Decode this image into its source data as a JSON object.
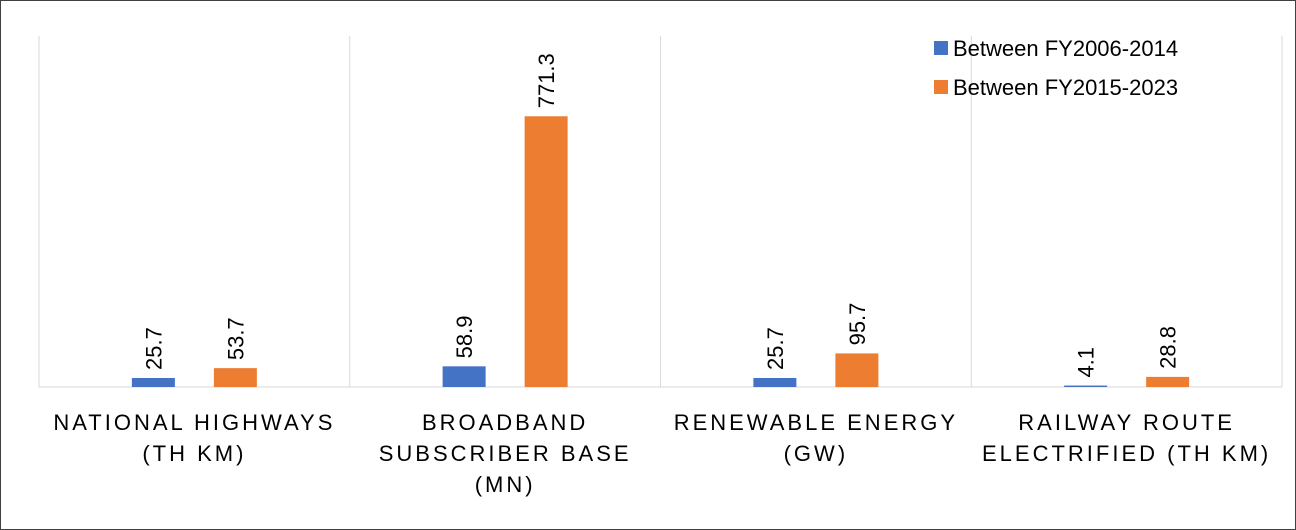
{
  "chart_data": {
    "type": "bar",
    "categories": [
      "NATIONAL HIGHWAYS (TH KM)",
      "BROADBAND SUBSCRIBER BASE (MN)",
      "RENEWABLE ENERGY (GW)",
      "RAILWAY ROUTE ELECTRIFIED (TH KM)"
    ],
    "series": [
      {
        "name": "Between FY2006-2014",
        "color": "#4472c4",
        "values": [
          25.7,
          58.9,
          25.7,
          4.1
        ]
      },
      {
        "name": "Between FY2015-2023",
        "color": "#ed7d31",
        "values": [
          53.7,
          771.3,
          95.7,
          28.8
        ]
      }
    ],
    "ylim": [
      0,
      1000
    ],
    "legend": "top-right",
    "grid": true
  }
}
